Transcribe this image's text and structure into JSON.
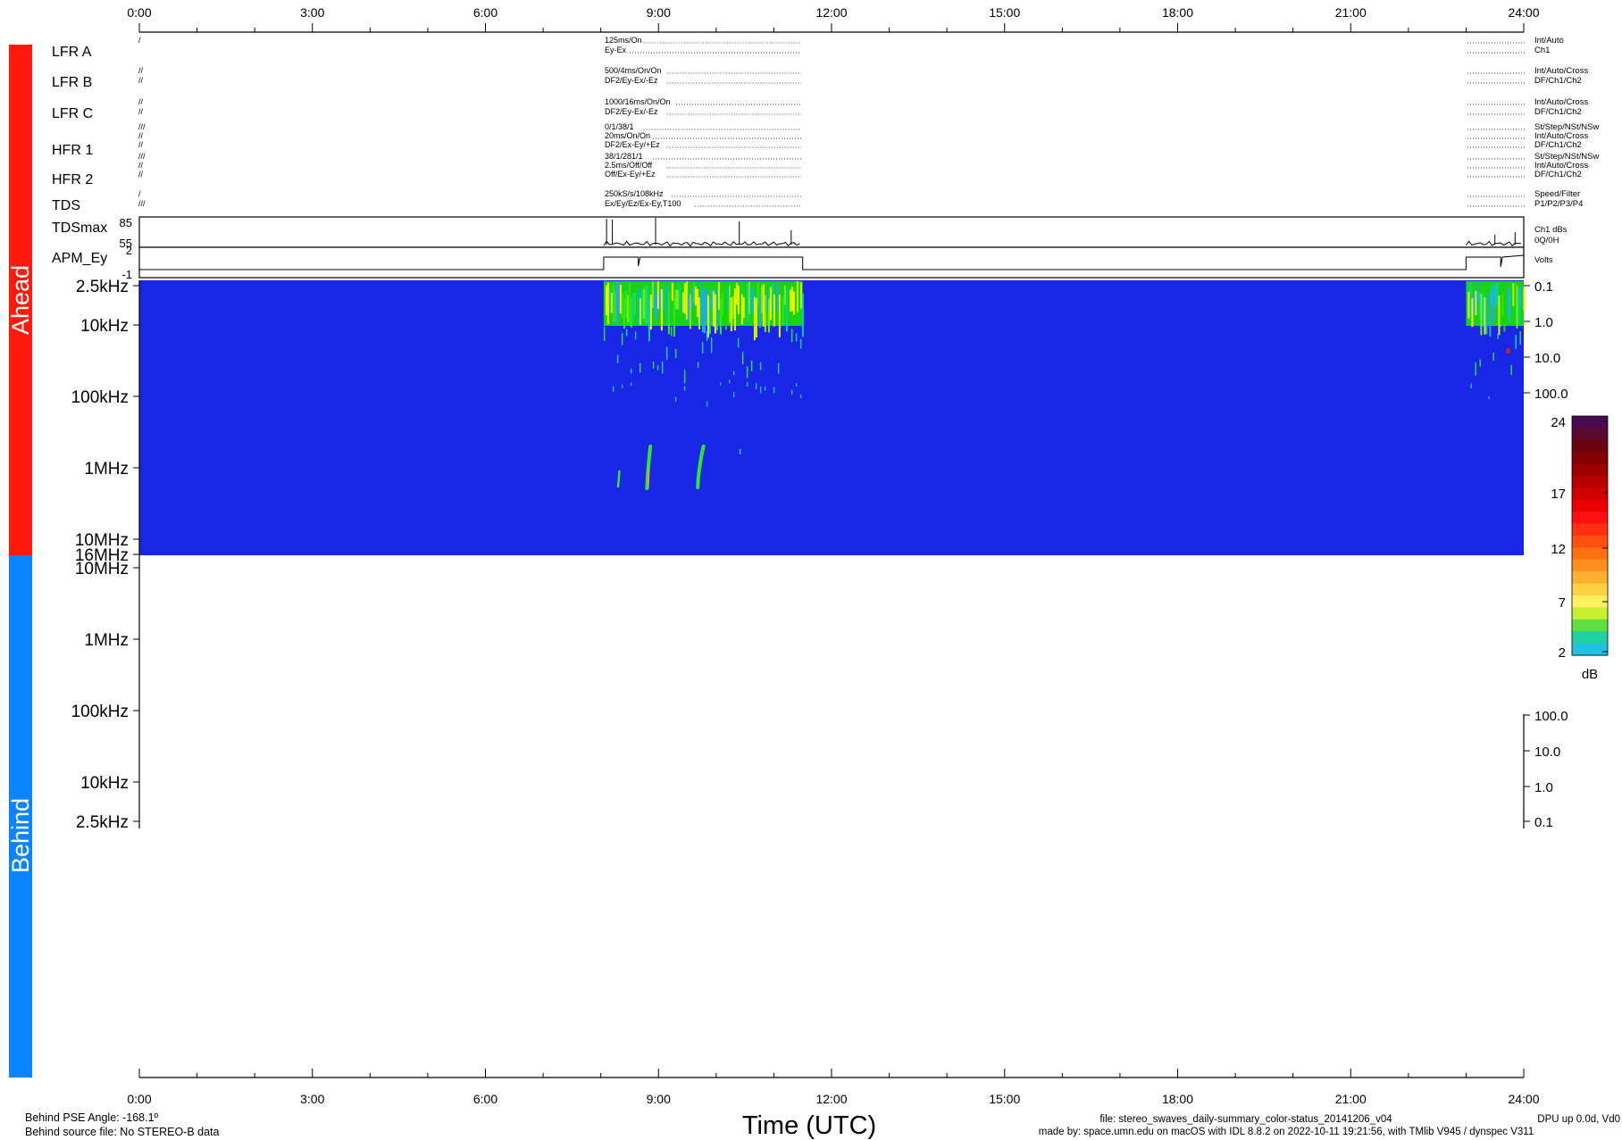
{
  "colors": {
    "ahead_bar": "#ff1a0d",
    "behind_bar": "#0a84ff",
    "spectrogram_bg": "#1a26e6"
  },
  "side_labels": {
    "ahead": "Ahead",
    "behind": "Behind"
  },
  "time_axis": {
    "ticks": [
      "0:00",
      "3:00",
      "6:00",
      "9:00",
      "12:00",
      "15:00",
      "18:00",
      "21:00",
      "24:00"
    ],
    "xlabel": "Time (UTC)"
  },
  "status_rows": [
    {
      "name": "LFR A",
      "left1": "/",
      "left2": "",
      "center1": "125ms/On",
      "center2": "Ey-Ex",
      "right1": "Int/Auto",
      "right2": "Ch1"
    },
    {
      "name": "LFR B",
      "left1": "//",
      "left2": "//",
      "center1": "500/4ms/On/On",
      "center2": "DF2/Ey-Ex/-Ez",
      "right1": "Int/Auto/Cross",
      "right2": "DF/Ch1/Ch2"
    },
    {
      "name": "LFR C",
      "left1": "//",
      "left2": "//",
      "center1": "1000/16ms/On/On",
      "center2": "DF2/Ey-Ex/-Ez",
      "right1": "Int/Auto/Cross",
      "right2": "DF/Ch1/Ch2"
    },
    {
      "name": "HFR 1",
      "left1": "///",
      "left2": "//",
      "left3": "//",
      "center1": "0/1/38/1",
      "center2": "20ms/On/On",
      "center3": "DF2/Ex-Ey/+Ez",
      "right1": "St/Step/NSt/NSw",
      "right2": "Int/Auto/Cross",
      "right3": "DF/Ch1/Ch2"
    },
    {
      "name": "HFR 2",
      "left1": "///",
      "left2": "//",
      "left3": "//",
      "center1": "38/1/281/1",
      "center2": "2.5ms/Off/Off",
      "center3": "Off/Ex-Ey/+Ez",
      "right1": "St/Step/NSt/NSw",
      "right2": "Int/Auto/Cross",
      "right3": "DF/Ch1/Ch2"
    },
    {
      "name": "TDS",
      "left1": "/",
      "left2": "///",
      "center1": "250kS/s/108kHz",
      "center2": "Ex/Ey/Ez/Ex-Ey,T100",
      "right1": "Speed/Filter",
      "right2": "P1/P2/P3/P4"
    }
  ],
  "tdsmax": {
    "name": "TDSmax",
    "ymax": "85",
    "ymin": "55",
    "right1": "Ch1 dBs",
    "right2": "0Q/0H"
  },
  "apm": {
    "name": "APM_Ey",
    "ymax": "2",
    "ymin": "-1",
    "right1": "Volts"
  },
  "ahead_freq_ticks": [
    "2.5kHz",
    "10kHz",
    "100kHz",
    "1MHz",
    "10MHz",
    "16MHz"
  ],
  "ahead_right_ticks": [
    "0.1",
    "1.0",
    "10.0",
    "100.0"
  ],
  "behind_freq_ticks": [
    "10MHz",
    "1MHz",
    "100kHz",
    "10kHz",
    "2.5kHz"
  ],
  "behind_right_ticks": [
    "100.0",
    "10.0",
    "1.0",
    "0.1"
  ],
  "colorbar": {
    "ticks": [
      "24",
      "17",
      "12",
      "7",
      "2"
    ],
    "unit": "dB"
  },
  "footer": {
    "behind_pse": "Behind PSE Angle: -168.1º",
    "behind_source": "Behind source file: No STEREO-B data",
    "file": "file: stereo_swaves_daily-summary_color-status_20141206_v04",
    "made_by": "made by: space.umn.edu on macOS with IDL 8.8.2 on 2022-10-11 19:21:56, with TMlib V945 / dynspec V311",
    "dpu": "DPU up 0.0d, Vd0"
  },
  "chart_data": {
    "type": "heatmap",
    "title": "",
    "xlabel": "Time (UTC)",
    "x_range_hours": [
      0,
      24
    ],
    "data_coverage_hours": [
      [
        8.05,
        11.5
      ],
      [
        23.0,
        24.0
      ]
    ],
    "tdsmax_y_range": [
      55,
      85
    ],
    "apm_y_range": [
      -1,
      2
    ],
    "colorbar_db_range": [
      2,
      24
    ],
    "radio_bursts": [
      {
        "start_hour": 8.3,
        "freq_top": "1MHz"
      },
      {
        "start_hour": 8.85,
        "freq_top": "0.5MHz"
      },
      {
        "start_hour": 9.7,
        "freq_top": "0.5MHz"
      }
    ]
  }
}
